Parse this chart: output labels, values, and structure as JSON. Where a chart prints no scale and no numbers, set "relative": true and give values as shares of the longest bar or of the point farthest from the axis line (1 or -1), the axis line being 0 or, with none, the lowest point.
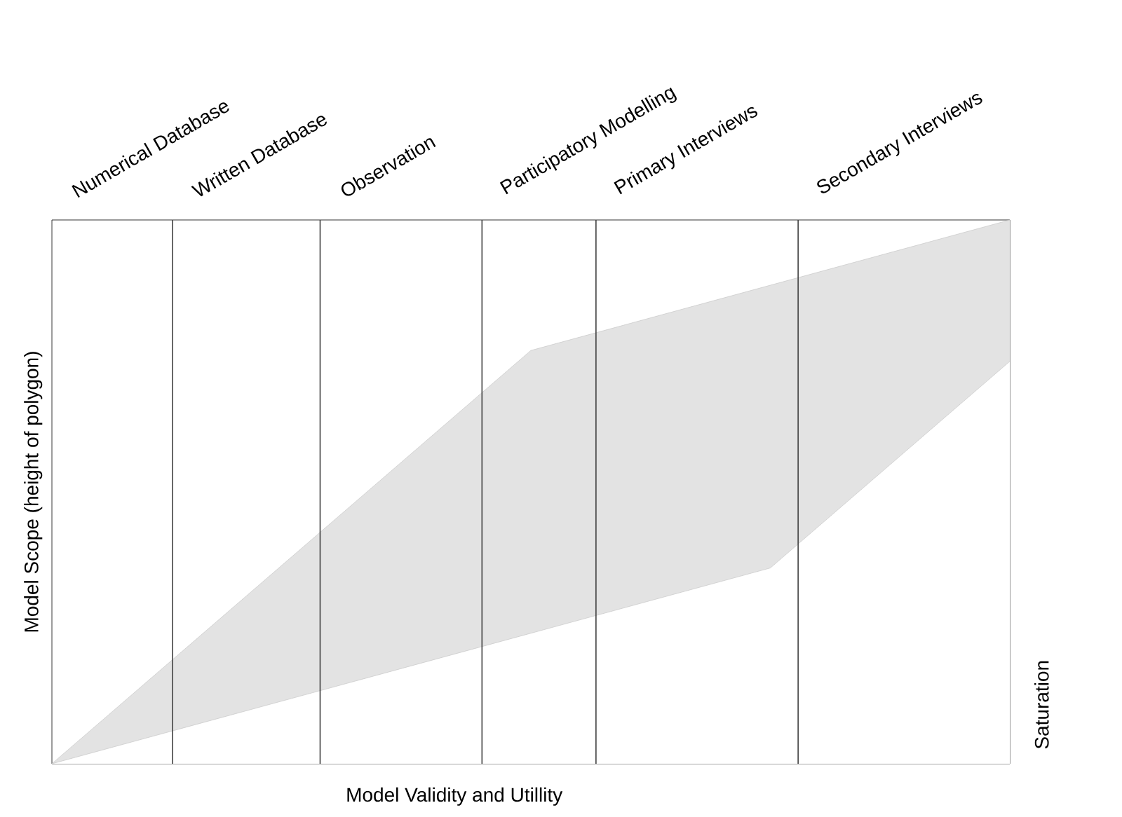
{
  "chart_data": {
    "type": "area",
    "relative": true,
    "xlabel": "Model Validity and Utillity",
    "ylabel": "Model Scope (height of polygon)",
    "y2label": "Saturation",
    "categories": [
      null,
      null,
      null,
      null,
      null
    ],
    "annotations": [
      "Numerical Database",
      "Written Database",
      "Observation",
      "Participatory Modelling",
      "Primary Interviews",
      "Secondary Interviews"
    ],
    "series": [
      {
        "color": "#e3e3e3",
        "values": [
          0,
          0.38,
          0.76,
          0.88,
          1
        ]
      },
      {
        "color": "#ffffff",
        "values": [
          0,
          0.12,
          0.24,
          0.36,
          0.74
        ]
      }
    ]
  }
}
